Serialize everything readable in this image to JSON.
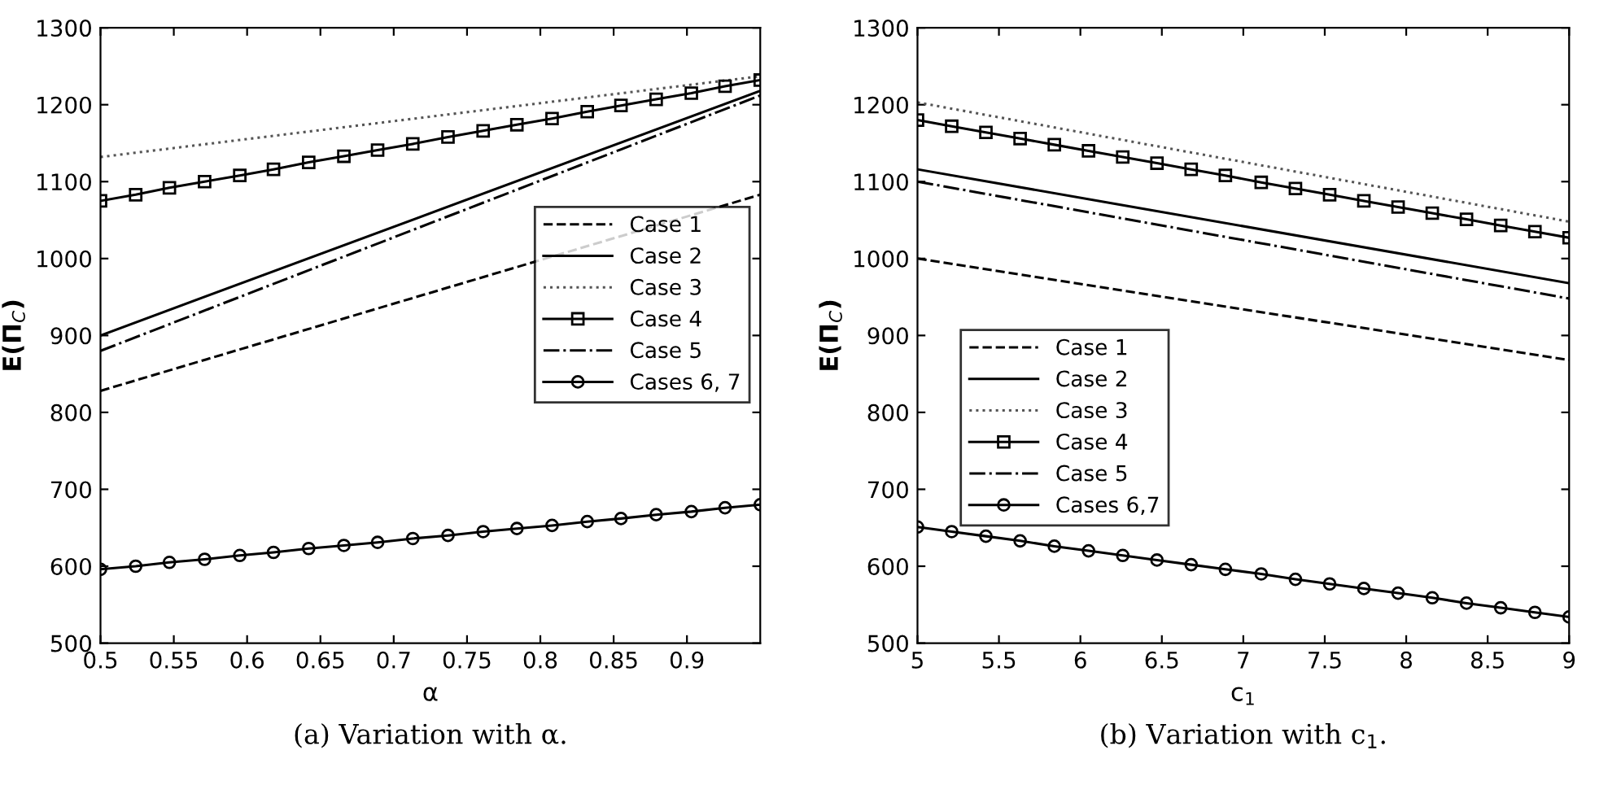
{
  "chart_data": [
    {
      "type": "line",
      "xlabel": "α",
      "ylabel": "E(Π$_{C}$)",
      "xlim": [
        0.5,
        0.95
      ],
      "xticks": [
        0.5,
        0.55,
        0.6,
        0.65,
        0.7,
        0.75,
        0.8,
        0.85,
        0.9
      ],
      "ylim": [
        500,
        1300
      ],
      "yticks": [
        500,
        600,
        700,
        800,
        900,
        1000,
        1100,
        1200,
        1300
      ],
      "grid": false,
      "legend": "right",
      "annotations": [
        "(a) Variation with α."
      ],
      "series": [
        {
          "name": "Case 1",
          "color": "#000000",
          "line_style": "dashed",
          "marker": "none",
          "x": [
            0.5,
            0.95
          ],
          "values": [
            828,
            1083
          ]
        },
        {
          "name": "Case 2",
          "color": "#000000",
          "line_style": "solid",
          "marker": "none",
          "x": [
            0.5,
            0.95
          ],
          "values": [
            900,
            1218
          ]
        },
        {
          "name": "Case 3",
          "color": "#555555",
          "line_style": "dotted",
          "marker": "none",
          "x": [
            0.5,
            0.95
          ],
          "values": [
            1132,
            1237
          ]
        },
        {
          "name": "Case 4",
          "color": "#000000",
          "line_style": "solid",
          "marker": "square",
          "x": [
            0.5,
            0.524,
            0.547,
            0.571,
            0.595,
            0.618,
            0.642,
            0.666,
            0.689,
            0.713,
            0.737,
            0.761,
            0.784,
            0.808,
            0.832,
            0.855,
            0.879,
            0.903,
            0.926,
            0.95
          ],
          "values": [
            1075,
            1083,
            1092,
            1100,
            1108,
            1116,
            1125,
            1133,
            1141,
            1149,
            1158,
            1166,
            1174,
            1182,
            1191,
            1199,
            1207,
            1215,
            1224,
            1232
          ]
        },
        {
          "name": "Case 5",
          "color": "#000000",
          "line_style": "dashdot",
          "marker": "none",
          "x": [
            0.5,
            0.95
          ],
          "values": [
            880,
            1212
          ]
        },
        {
          "name": "Cases 6, 7",
          "color": "#000000",
          "line_style": "solid",
          "marker": "circle",
          "x": [
            0.5,
            0.524,
            0.547,
            0.571,
            0.595,
            0.618,
            0.642,
            0.666,
            0.689,
            0.713,
            0.737,
            0.761,
            0.784,
            0.808,
            0.832,
            0.855,
            0.879,
            0.903,
            0.926,
            0.95
          ],
          "values": [
            596,
            600,
            605,
            609,
            614,
            618,
            623,
            627,
            631,
            636,
            640,
            645,
            649,
            653,
            658,
            662,
            667,
            671,
            676,
            680
          ]
        }
      ]
    },
    {
      "type": "line",
      "xlabel": "c$_{1}$",
      "ylabel": "E(Π$_{C}$)",
      "xlim": [
        5,
        9
      ],
      "xticks": [
        5,
        5.5,
        6,
        6.5,
        7,
        7.5,
        8,
        8.5,
        9
      ],
      "ylim": [
        500,
        1300
      ],
      "yticks": [
        500,
        600,
        700,
        800,
        900,
        1000,
        1100,
        1200,
        1300
      ],
      "grid": false,
      "legend": "left",
      "annotations": [
        "(b) Variation with c$_{1}$."
      ],
      "series": [
        {
          "name": "Case 1",
          "color": "#000000",
          "line_style": "dashed",
          "marker": "none",
          "x": [
            5,
            9
          ],
          "values": [
            1000,
            868
          ]
        },
        {
          "name": "Case 2",
          "color": "#000000",
          "line_style": "solid",
          "marker": "none",
          "x": [
            5,
            9
          ],
          "values": [
            1116,
            968
          ]
        },
        {
          "name": "Case 3",
          "color": "#555555",
          "line_style": "dotted",
          "marker": "none",
          "x": [
            5,
            9
          ],
          "values": [
            1203,
            1048
          ]
        },
        {
          "name": "Case 4",
          "color": "#000000",
          "line_style": "solid",
          "marker": "square",
          "x": [
            5,
            5.21,
            5.42,
            5.63,
            5.84,
            6.05,
            6.26,
            6.47,
            6.68,
            6.89,
            7.11,
            7.32,
            7.53,
            7.74,
            7.95,
            8.16,
            8.37,
            8.58,
            8.79,
            9
          ],
          "values": [
            1180,
            1172,
            1164,
            1156,
            1148,
            1140,
            1132,
            1124,
            1116,
            1108,
            1099,
            1091,
            1083,
            1075,
            1067,
            1059,
            1051,
            1043,
            1035,
            1027
          ]
        },
        {
          "name": "Case 5",
          "color": "#000000",
          "line_style": "dashdot",
          "marker": "none",
          "x": [
            5,
            9
          ],
          "values": [
            1100,
            948
          ]
        },
        {
          "name": "Cases 6,7",
          "color": "#000000",
          "line_style": "solid",
          "marker": "circle",
          "x": [
            5,
            5.21,
            5.42,
            5.63,
            5.84,
            6.05,
            6.26,
            6.47,
            6.68,
            6.89,
            7.11,
            7.32,
            7.53,
            7.74,
            7.95,
            8.16,
            8.37,
            8.58,
            8.79,
            9
          ],
          "values": [
            651,
            645,
            639,
            633,
            626,
            620,
            614,
            608,
            602,
            596,
            590,
            583,
            577,
            571,
            565,
            559,
            552,
            546,
            540,
            534
          ]
        }
      ]
    }
  ]
}
